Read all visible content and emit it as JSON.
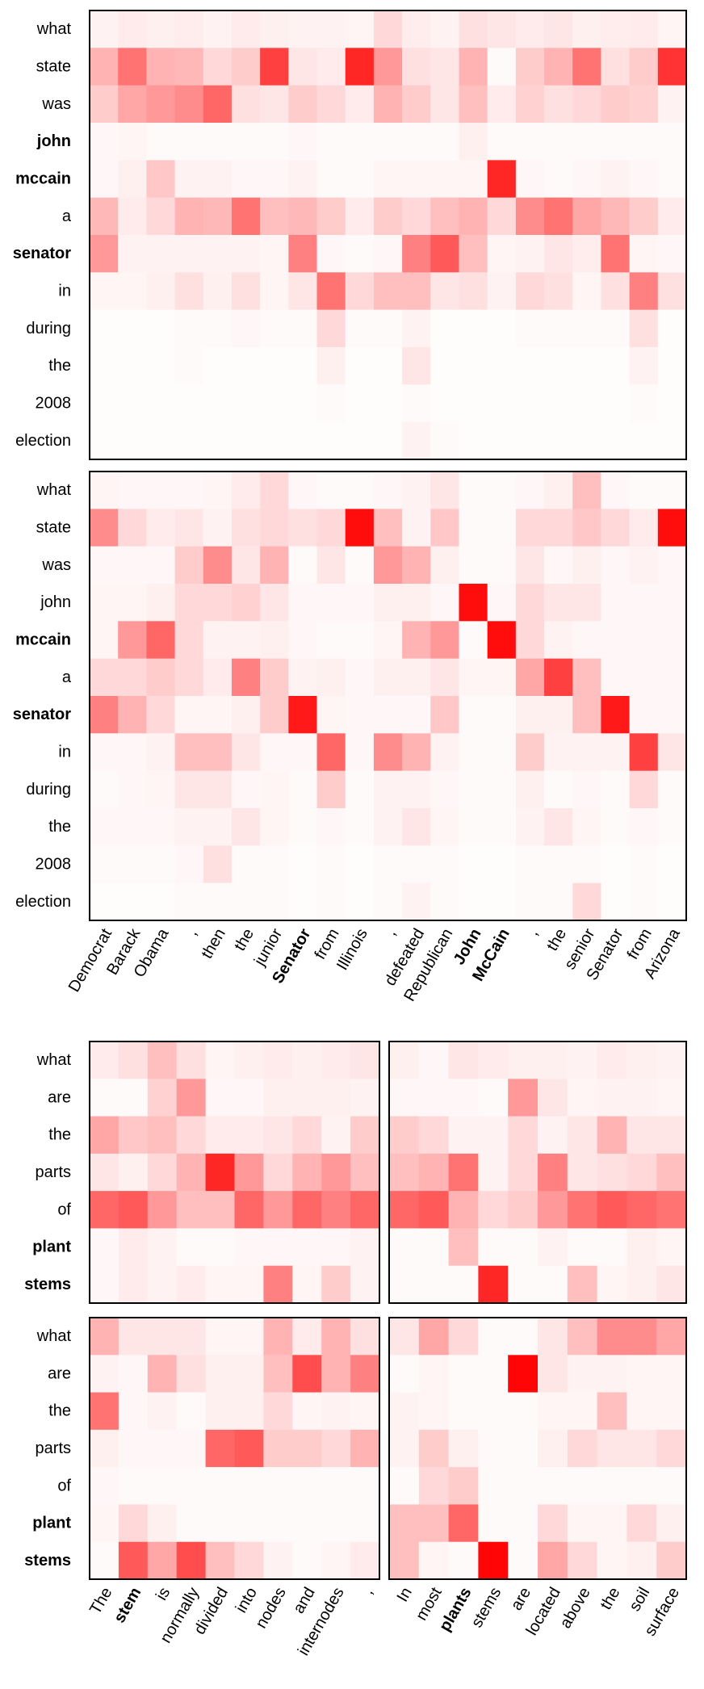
{
  "chart_data": [
    {
      "type": "heatmap",
      "name": "mccain-question-encoding",
      "title": "",
      "color_scale": {
        "low": "#ffffff",
        "high": "#ff0000",
        "min": 0,
        "max": 1
      },
      "y_tokens": [
        "what",
        "state",
        "was",
        "john",
        "mccain",
        "a",
        "senator",
        "in",
        "during",
        "the",
        "2008",
        "election"
      ],
      "y_bold": [
        false,
        false,
        false,
        true,
        true,
        false,
        true,
        false,
        false,
        false,
        false,
        false
      ],
      "x_tokens": [
        "Democrat",
        "Barack",
        "Obama",
        ",",
        "then",
        "the",
        "junior",
        "Senator",
        "from",
        "Illinois",
        ",",
        "defeated",
        "Republican",
        "John",
        "McCain",
        ",",
        "the",
        "senior",
        "Senator",
        "from",
        "Arizona"
      ],
      "x_bold": [
        false,
        false,
        false,
        false,
        false,
        false,
        false,
        true,
        false,
        false,
        false,
        false,
        false,
        true,
        true,
        false,
        false,
        false,
        false,
        false,
        false
      ],
      "values": [
        [
          0.05,
          0.08,
          0.06,
          0.07,
          0.05,
          0.08,
          0.06,
          0.05,
          0.05,
          0.04,
          0.15,
          0.07,
          0.05,
          0.12,
          0.1,
          0.08,
          0.1,
          0.06,
          0.07,
          0.08,
          0.04
        ],
        [
          0.3,
          0.55,
          0.3,
          0.28,
          0.15,
          0.2,
          0.75,
          0.1,
          0.08,
          0.85,
          0.4,
          0.12,
          0.1,
          0.3,
          0.02,
          0.2,
          0.3,
          0.55,
          0.12,
          0.2,
          0.8
        ],
        [
          0.2,
          0.35,
          0.4,
          0.45,
          0.6,
          0.12,
          0.1,
          0.2,
          0.15,
          0.08,
          0.3,
          0.2,
          0.1,
          0.25,
          0.08,
          0.18,
          0.12,
          0.15,
          0.2,
          0.18,
          0.05
        ],
        [
          0.03,
          0.04,
          0.02,
          0.02,
          0.02,
          0.02,
          0.02,
          0.03,
          0.02,
          0.02,
          0.02,
          0.02,
          0.02,
          0.06,
          0.02,
          0.02,
          0.02,
          0.02,
          0.02,
          0.02,
          0.02
        ],
        [
          0.03,
          0.06,
          0.22,
          0.05,
          0.05,
          0.03,
          0.03,
          0.05,
          0.02,
          0.02,
          0.04,
          0.04,
          0.04,
          0.04,
          0.85,
          0.03,
          0.02,
          0.03,
          0.05,
          0.03,
          0.02
        ],
        [
          0.28,
          0.08,
          0.15,
          0.3,
          0.28,
          0.55,
          0.25,
          0.28,
          0.2,
          0.08,
          0.2,
          0.15,
          0.25,
          0.3,
          0.15,
          0.45,
          0.55,
          0.35,
          0.28,
          0.2,
          0.08
        ],
        [
          0.4,
          0.05,
          0.05,
          0.05,
          0.05,
          0.05,
          0.04,
          0.5,
          0.03,
          0.02,
          0.03,
          0.5,
          0.65,
          0.25,
          0.04,
          0.05,
          0.1,
          0.07,
          0.55,
          0.04,
          0.03
        ],
        [
          0.04,
          0.04,
          0.06,
          0.12,
          0.06,
          0.12,
          0.04,
          0.1,
          0.55,
          0.15,
          0.25,
          0.25,
          0.1,
          0.12,
          0.05,
          0.15,
          0.12,
          0.04,
          0.12,
          0.5,
          0.12
        ],
        [
          0.01,
          0.01,
          0.01,
          0.02,
          0.02,
          0.03,
          0.02,
          0.02,
          0.15,
          0.02,
          0.02,
          0.05,
          0.01,
          0.01,
          0.01,
          0.02,
          0.02,
          0.02,
          0.02,
          0.12,
          0.01
        ],
        [
          0.01,
          0.01,
          0.01,
          0.02,
          0.01,
          0.01,
          0.01,
          0.01,
          0.06,
          0.01,
          0.01,
          0.1,
          0.01,
          0.01,
          0.01,
          0.01,
          0.01,
          0.01,
          0.01,
          0.05,
          0.01
        ],
        [
          0.01,
          0.01,
          0.01,
          0.01,
          0.01,
          0.01,
          0.01,
          0.01,
          0.02,
          0.01,
          0.01,
          0.02,
          0.01,
          0.01,
          0.01,
          0.01,
          0.01,
          0.01,
          0.01,
          0.02,
          0.01
        ],
        [
          0.01,
          0.01,
          0.01,
          0.01,
          0.01,
          0.01,
          0.01,
          0.01,
          0.01,
          0.01,
          0.01,
          0.05,
          0.02,
          0.01,
          0.01,
          0.01,
          0.01,
          0.01,
          0.01,
          0.01,
          0.01
        ]
      ]
    },
    {
      "type": "heatmap",
      "name": "mccain-passage-attention",
      "title": "",
      "color_scale": {
        "low": "#ffffff",
        "high": "#ff0000",
        "min": 0,
        "max": 1
      },
      "y_tokens": [
        "what",
        "state",
        "was",
        "john",
        "mccain",
        "a",
        "senator",
        "in",
        "during",
        "the",
        "2008",
        "election"
      ],
      "y_bold": [
        false,
        false,
        false,
        false,
        true,
        false,
        true,
        false,
        false,
        false,
        false,
        false
      ],
      "x_tokens": [
        "Democrat",
        "Barack",
        "Obama",
        ",",
        "then",
        "the",
        "junior",
        "Senator",
        "from",
        "Illinois",
        ",",
        "defeated",
        "Republican",
        "John",
        "McCain",
        ",",
        "the",
        "senior",
        "Senator",
        "from",
        "Arizona"
      ],
      "x_bold": [
        false,
        false,
        false,
        false,
        false,
        false,
        false,
        true,
        false,
        false,
        false,
        false,
        false,
        true,
        true,
        false,
        false,
        false,
        false,
        false,
        false
      ],
      "values": [
        [
          0.04,
          0.03,
          0.03,
          0.03,
          0.04,
          0.08,
          0.15,
          0.03,
          0.02,
          0.02,
          0.03,
          0.05,
          0.1,
          0.02,
          0.02,
          0.03,
          0.06,
          0.25,
          0.03,
          0.02,
          0.02
        ],
        [
          0.45,
          0.15,
          0.08,
          0.1,
          0.05,
          0.12,
          0.15,
          0.12,
          0.15,
          0.95,
          0.25,
          0.05,
          0.22,
          0.02,
          0.02,
          0.15,
          0.15,
          0.22,
          0.15,
          0.08,
          0.95
        ],
        [
          0.03,
          0.03,
          0.03,
          0.2,
          0.45,
          0.1,
          0.3,
          0.02,
          0.1,
          0.02,
          0.4,
          0.3,
          0.06,
          0.02,
          0.02,
          0.1,
          0.03,
          0.06,
          0.03,
          0.05,
          0.03
        ],
        [
          0.04,
          0.04,
          0.06,
          0.15,
          0.15,
          0.18,
          0.1,
          0.03,
          0.03,
          0.03,
          0.06,
          0.06,
          0.03,
          0.95,
          0.03,
          0.15,
          0.1,
          0.1,
          0.03,
          0.03,
          0.03
        ],
        [
          0.04,
          0.4,
          0.6,
          0.15,
          0.05,
          0.05,
          0.06,
          0.03,
          0.02,
          0.02,
          0.04,
          0.3,
          0.4,
          0.02,
          0.95,
          0.15,
          0.05,
          0.03,
          0.03,
          0.03,
          0.03
        ],
        [
          0.15,
          0.15,
          0.2,
          0.15,
          0.08,
          0.5,
          0.2,
          0.05,
          0.06,
          0.03,
          0.06,
          0.06,
          0.1,
          0.04,
          0.04,
          0.35,
          0.75,
          0.25,
          0.03,
          0.03,
          0.03
        ],
        [
          0.5,
          0.3,
          0.15,
          0.04,
          0.04,
          0.06,
          0.2,
          0.9,
          0.04,
          0.03,
          0.03,
          0.03,
          0.22,
          0.02,
          0.02,
          0.06,
          0.06,
          0.25,
          0.9,
          0.03,
          0.03
        ],
        [
          0.03,
          0.03,
          0.05,
          0.25,
          0.25,
          0.1,
          0.03,
          0.03,
          0.6,
          0.03,
          0.45,
          0.3,
          0.05,
          0.02,
          0.02,
          0.2,
          0.05,
          0.05,
          0.05,
          0.75,
          0.1
        ],
        [
          0.02,
          0.03,
          0.04,
          0.1,
          0.1,
          0.03,
          0.04,
          0.02,
          0.2,
          0.02,
          0.05,
          0.05,
          0.03,
          0.02,
          0.02,
          0.06,
          0.02,
          0.03,
          0.02,
          0.15,
          0.02
        ],
        [
          0.03,
          0.03,
          0.03,
          0.05,
          0.05,
          0.1,
          0.04,
          0.02,
          0.03,
          0.02,
          0.05,
          0.1,
          0.04,
          0.02,
          0.02,
          0.05,
          0.1,
          0.04,
          0.02,
          0.03,
          0.02
        ],
        [
          0.02,
          0.02,
          0.02,
          0.03,
          0.12,
          0.02,
          0.02,
          0.01,
          0.02,
          0.01,
          0.02,
          0.02,
          0.02,
          0.01,
          0.01,
          0.02,
          0.02,
          0.02,
          0.01,
          0.02,
          0.01
        ],
        [
          0.01,
          0.01,
          0.01,
          0.02,
          0.02,
          0.02,
          0.02,
          0.01,
          0.02,
          0.01,
          0.02,
          0.05,
          0.02,
          0.01,
          0.01,
          0.02,
          0.02,
          0.15,
          0.01,
          0.02,
          0.01
        ]
      ]
    },
    {
      "type": "heatmap",
      "name": "stem-question-encoding-left",
      "title": "",
      "color_scale": {
        "low": "#ffffff",
        "high": "#ff0000",
        "min": 0,
        "max": 1
      },
      "y_tokens": [
        "what",
        "are",
        "the",
        "parts",
        "of",
        "plant",
        "stems"
      ],
      "y_bold": [
        false,
        false,
        false,
        false,
        false,
        true,
        true
      ],
      "x_tokens": [
        "The",
        "stem",
        "is",
        "normally",
        "divided",
        "into",
        "nodes",
        "and",
        "internodes",
        ","
      ],
      "x_bold": [
        false,
        true,
        false,
        false,
        false,
        false,
        false,
        false,
        false,
        false
      ],
      "values": [
        [
          0.08,
          0.12,
          0.25,
          0.12,
          0.04,
          0.06,
          0.08,
          0.06,
          0.08,
          0.1
        ],
        [
          0.02,
          0.02,
          0.18,
          0.4,
          0.03,
          0.03,
          0.06,
          0.06,
          0.06,
          0.05
        ],
        [
          0.35,
          0.22,
          0.25,
          0.15,
          0.08,
          0.08,
          0.1,
          0.15,
          0.05,
          0.2
        ],
        [
          0.1,
          0.06,
          0.15,
          0.3,
          0.85,
          0.4,
          0.15,
          0.3,
          0.4,
          0.25
        ],
        [
          0.6,
          0.65,
          0.4,
          0.25,
          0.25,
          0.6,
          0.4,
          0.6,
          0.5,
          0.6
        ],
        [
          0.03,
          0.08,
          0.05,
          0.02,
          0.02,
          0.03,
          0.03,
          0.03,
          0.03,
          0.05
        ],
        [
          0.03,
          0.08,
          0.05,
          0.08,
          0.04,
          0.04,
          0.5,
          0.04,
          0.2,
          0.05
        ]
      ]
    },
    {
      "type": "heatmap",
      "name": "stem-question-encoding-right",
      "title": "",
      "color_scale": {
        "low": "#ffffff",
        "high": "#ff0000",
        "min": 0,
        "max": 1
      },
      "y_tokens": [
        "what",
        "are",
        "the",
        "parts",
        "of",
        "plant",
        "stems"
      ],
      "y_bold": [
        false,
        false,
        false,
        false,
        false,
        true,
        true
      ],
      "x_tokens": [
        "In",
        "most",
        "plants",
        "stems",
        "are",
        "located",
        "above",
        "the",
        "soil",
        "surface"
      ],
      "x_bold": [
        false,
        false,
        true,
        false,
        false,
        false,
        false,
        false,
        false,
        false
      ],
      "values": [
        [
          0.06,
          0.03,
          0.1,
          0.08,
          0.06,
          0.06,
          0.05,
          0.08,
          0.06,
          0.05
        ],
        [
          0.03,
          0.03,
          0.03,
          0.02,
          0.4,
          0.1,
          0.04,
          0.05,
          0.05,
          0.04
        ],
        [
          0.2,
          0.15,
          0.05,
          0.05,
          0.15,
          0.05,
          0.1,
          0.3,
          0.1,
          0.1
        ],
        [
          0.25,
          0.3,
          0.55,
          0.05,
          0.15,
          0.5,
          0.1,
          0.12,
          0.15,
          0.25
        ],
        [
          0.6,
          0.65,
          0.3,
          0.15,
          0.2,
          0.4,
          0.55,
          0.65,
          0.6,
          0.55
        ],
        [
          0.02,
          0.02,
          0.25,
          0.02,
          0.02,
          0.05,
          0.02,
          0.02,
          0.06,
          0.04
        ],
        [
          0.02,
          0.02,
          0.02,
          0.85,
          0.02,
          0.02,
          0.25,
          0.04,
          0.06,
          0.1
        ]
      ]
    },
    {
      "type": "heatmap",
      "name": "stem-passage-attention-left",
      "title": "",
      "color_scale": {
        "low": "#ffffff",
        "high": "#ff0000",
        "min": 0,
        "max": 1
      },
      "y_tokens": [
        "what",
        "are",
        "the",
        "parts",
        "of",
        "plant",
        "stems"
      ],
      "y_bold": [
        false,
        false,
        false,
        false,
        false,
        true,
        true
      ],
      "x_tokens": [
        "The",
        "stem",
        "is",
        "normally",
        "divided",
        "into",
        "nodes",
        "and",
        "internodes",
        ","
      ],
      "x_bold": [
        false,
        true,
        false,
        false,
        false,
        false,
        false,
        false,
        false,
        false
      ],
      "values": [
        [
          0.3,
          0.1,
          0.1,
          0.1,
          0.04,
          0.04,
          0.3,
          0.08,
          0.3,
          0.12
        ],
        [
          0.05,
          0.03,
          0.3,
          0.12,
          0.06,
          0.06,
          0.25,
          0.7,
          0.3,
          0.5
        ],
        [
          0.55,
          0.03,
          0.05,
          0.02,
          0.06,
          0.06,
          0.15,
          0.04,
          0.05,
          0.04
        ],
        [
          0.06,
          0.03,
          0.03,
          0.03,
          0.6,
          0.65,
          0.2,
          0.2,
          0.15,
          0.3
        ],
        [
          0.03,
          0.02,
          0.02,
          0.02,
          0.02,
          0.02,
          0.02,
          0.02,
          0.02,
          0.02
        ],
        [
          0.04,
          0.15,
          0.06,
          0.02,
          0.02,
          0.02,
          0.02,
          0.02,
          0.02,
          0.02
        ],
        [
          0.02,
          0.65,
          0.35,
          0.7,
          0.25,
          0.15,
          0.05,
          0.02,
          0.04,
          0.08
        ]
      ]
    },
    {
      "type": "heatmap",
      "name": "stem-passage-attention-right",
      "title": "",
      "color_scale": {
        "low": "#ffffff",
        "high": "#ff0000",
        "min": 0,
        "max": 1
      },
      "y_tokens": [
        "what",
        "are",
        "the",
        "parts",
        "of",
        "plant",
        "stems"
      ],
      "y_bold": [
        false,
        false,
        false,
        false,
        false,
        true,
        true
      ],
      "x_tokens": [
        "In",
        "most",
        "plants",
        "stems",
        "are",
        "located",
        "above",
        "the",
        "soil",
        "surface"
      ],
      "x_bold": [
        false,
        false,
        true,
        false,
        false,
        false,
        false,
        false,
        false,
        false
      ],
      "values": [
        [
          0.1,
          0.35,
          0.15,
          0.02,
          0.02,
          0.1,
          0.25,
          0.45,
          0.45,
          0.35
        ],
        [
          0.02,
          0.04,
          0.02,
          0.02,
          0.98,
          0.1,
          0.05,
          0.05,
          0.04,
          0.04
        ],
        [
          0.05,
          0.04,
          0.02,
          0.02,
          0.02,
          0.04,
          0.04,
          0.25,
          0.04,
          0.04
        ],
        [
          0.05,
          0.2,
          0.06,
          0.02,
          0.02,
          0.06,
          0.15,
          0.1,
          0.1,
          0.15
        ],
        [
          0.02,
          0.15,
          0.2,
          0.02,
          0.02,
          0.02,
          0.02,
          0.02,
          0.02,
          0.02
        ],
        [
          0.25,
          0.25,
          0.6,
          0.02,
          0.02,
          0.15,
          0.04,
          0.04,
          0.15,
          0.06
        ],
        [
          0.25,
          0.04,
          0.02,
          0.98,
          0.02,
          0.35,
          0.15,
          0.04,
          0.06,
          0.2
        ]
      ]
    }
  ]
}
